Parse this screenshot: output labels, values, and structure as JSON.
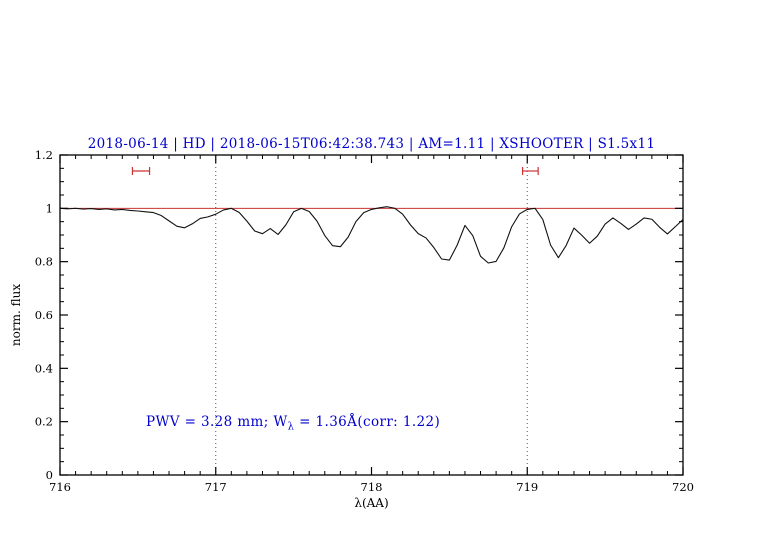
{
  "colors": {
    "accent_blue": "#0000cd",
    "reference_red": "#cc3333",
    "spectrum_black": "#111111",
    "dotted_grey": "#555555",
    "axis_black": "#000000"
  },
  "header": {
    "title": "2018-06-14 | HD | 2018-06-15T06:42:38.743 | AM=1.11 | XSHOOTER | S1.5x11"
  },
  "annotation": {
    "part1": "PWV = 3.28 mm; W",
    "sub": "λ",
    "part2": " = 1.36Å(corr: 1.22)"
  },
  "chart_data": {
    "type": "line",
    "title": "2018-06-14 | HD | 2018-06-15T06:42:38.743 | AM=1.11 | XSHOOTER | S1.5x11",
    "xlabel": "λ(AA)",
    "ylabel": "norm. flux",
    "xlim": [
      716,
      720
    ],
    "ylim": [
      0,
      1.2
    ],
    "xticks": [
      716,
      717,
      718,
      719,
      720
    ],
    "xtick_labels": [
      "716",
      "717",
      "718",
      "719",
      "720"
    ],
    "x_minor_step": 0.1,
    "yticks": [
      0,
      0.2,
      0.4,
      0.6,
      0.8,
      1.0,
      1.2
    ],
    "ytick_labels": [
      "0",
      "0.2",
      "0.4",
      "0.6",
      "0.8",
      "1",
      "1.2"
    ],
    "y_minor_step": 0.05,
    "grid": false,
    "legend": "none",
    "reference_line_y": 1.0,
    "vlines": [
      717,
      719
    ],
    "range_markers": [
      {
        "x_center": 716.52,
        "half_width": 0.055,
        "y": 1.14
      },
      {
        "x_center": 719.02,
        "half_width": 0.05,
        "y": 1.14
      }
    ],
    "annotation_text": "PWV = 3.28 mm; W_λ = 1.36Å(corr: 1.22)",
    "series": [
      {
        "name": "telluric-spectrum",
        "color": "#111111",
        "points": [
          [
            716.0,
            1.0
          ],
          [
            716.05,
            0.998
          ],
          [
            716.1,
            1.0
          ],
          [
            716.15,
            0.997
          ],
          [
            716.2,
            0.999
          ],
          [
            716.25,
            0.996
          ],
          [
            716.3,
            0.998
          ],
          [
            716.35,
            0.994
          ],
          [
            716.4,
            0.996
          ],
          [
            716.45,
            0.992
          ],
          [
            716.5,
            0.99
          ],
          [
            716.55,
            0.987
          ],
          [
            716.6,
            0.984
          ],
          [
            716.65,
            0.973
          ],
          [
            716.7,
            0.953
          ],
          [
            716.75,
            0.933
          ],
          [
            716.8,
            0.927
          ],
          [
            716.85,
            0.942
          ],
          [
            716.9,
            0.962
          ],
          [
            716.95,
            0.968
          ],
          [
            717.0,
            0.978
          ],
          [
            717.05,
            0.994
          ],
          [
            717.1,
            1.0
          ],
          [
            717.15,
            0.985
          ],
          [
            717.2,
            0.952
          ],
          [
            717.25,
            0.915
          ],
          [
            717.3,
            0.905
          ],
          [
            717.35,
            0.924
          ],
          [
            717.4,
            0.902
          ],
          [
            717.45,
            0.938
          ],
          [
            717.5,
            0.987
          ],
          [
            717.55,
            1.0
          ],
          [
            717.6,
            0.988
          ],
          [
            717.65,
            0.952
          ],
          [
            717.7,
            0.898
          ],
          [
            717.75,
            0.86
          ],
          [
            717.8,
            0.856
          ],
          [
            717.85,
            0.892
          ],
          [
            717.9,
            0.95
          ],
          [
            717.95,
            0.984
          ],
          [
            718.0,
            0.996
          ],
          [
            718.05,
            1.002
          ],
          [
            718.1,
            1.006
          ],
          [
            718.15,
            1.0
          ],
          [
            718.2,
            0.978
          ],
          [
            718.25,
            0.938
          ],
          [
            718.3,
            0.905
          ],
          [
            718.35,
            0.889
          ],
          [
            718.4,
            0.853
          ],
          [
            718.45,
            0.81
          ],
          [
            718.5,
            0.806
          ],
          [
            718.55,
            0.862
          ],
          [
            718.6,
            0.936
          ],
          [
            718.65,
            0.898
          ],
          [
            718.7,
            0.82
          ],
          [
            718.75,
            0.795
          ],
          [
            718.8,
            0.801
          ],
          [
            718.85,
            0.852
          ],
          [
            718.9,
            0.931
          ],
          [
            718.95,
            0.979
          ],
          [
            719.0,
            0.996
          ],
          [
            719.05,
            1.0
          ],
          [
            719.1,
            0.958
          ],
          [
            719.15,
            0.862
          ],
          [
            719.2,
            0.815
          ],
          [
            719.25,
            0.861
          ],
          [
            719.3,
            0.926
          ],
          [
            719.35,
            0.899
          ],
          [
            719.4,
            0.869
          ],
          [
            719.45,
            0.896
          ],
          [
            719.5,
            0.941
          ],
          [
            719.55,
            0.964
          ],
          [
            719.6,
            0.944
          ],
          [
            719.65,
            0.921
          ],
          [
            719.7,
            0.941
          ],
          [
            719.75,
            0.964
          ],
          [
            719.8,
            0.959
          ],
          [
            719.85,
            0.929
          ],
          [
            719.9,
            0.904
          ],
          [
            719.95,
            0.931
          ],
          [
            720.0,
            0.958
          ]
        ]
      }
    ]
  }
}
